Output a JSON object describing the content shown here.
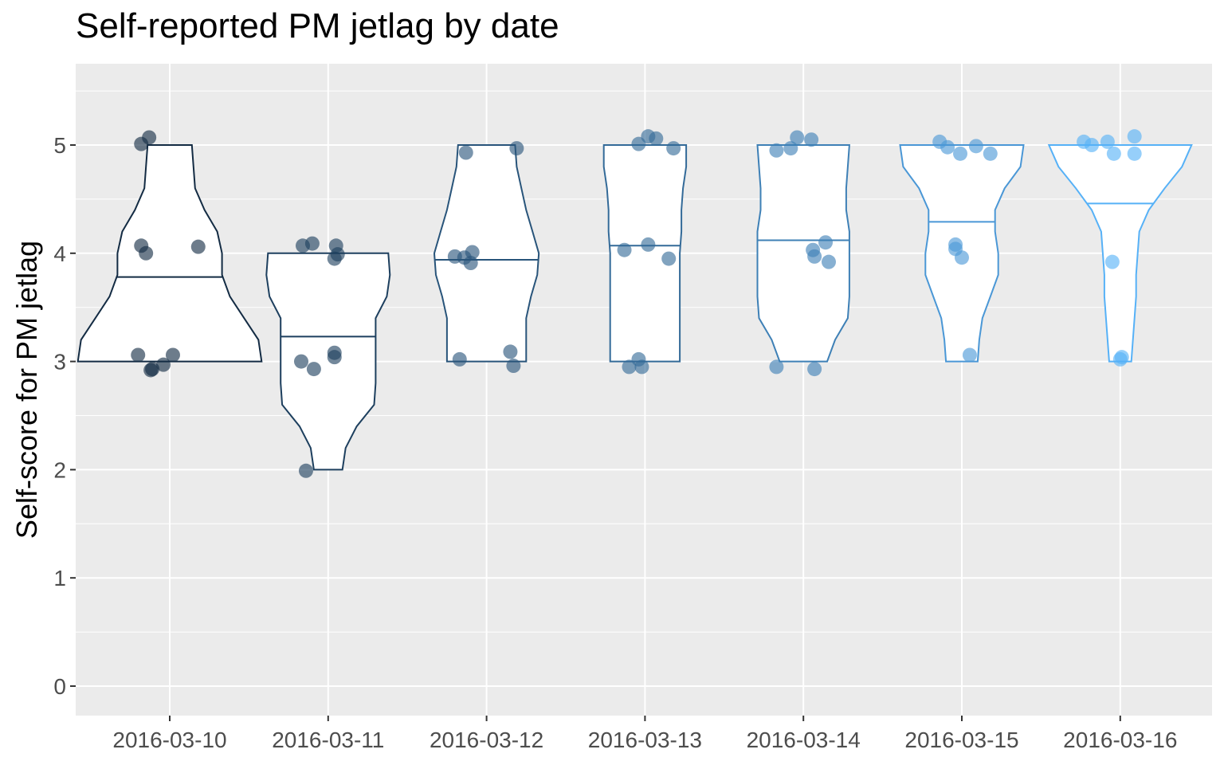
{
  "chart_data": {
    "type": "violin",
    "title": "Self-reported PM jetlag by date",
    "xlabel": "",
    "ylabel": "Self-score for PM jetlag",
    "ylim": [
      -0.25,
      5.75
    ],
    "yticks": [
      0,
      1,
      2,
      3,
      4,
      5
    ],
    "grid": true,
    "legend": "none",
    "categories": [
      "2016-03-10",
      "2016-03-11",
      "2016-03-12",
      "2016-03-13",
      "2016-03-14",
      "2016-03-15",
      "2016-03-16"
    ],
    "colors": [
      "#132B43",
      "#1D3F5E",
      "#28547A",
      "#336A98",
      "#3E80B6",
      "#4A97D6",
      "#56B1F7"
    ],
    "panel_background": "#EBEBEB",
    "groups": [
      {
        "category": "2016-03-10",
        "mean": 3.78,
        "range": [
          3,
          5
        ],
        "profile": [
          [
            3.0,
            0.58
          ],
          [
            3.2,
            0.56
          ],
          [
            3.4,
            0.47
          ],
          [
            3.6,
            0.38
          ],
          [
            3.8,
            0.33
          ],
          [
            4.0,
            0.33
          ],
          [
            4.2,
            0.3
          ],
          [
            4.4,
            0.22
          ],
          [
            4.6,
            0.16
          ],
          [
            4.8,
            0.15
          ],
          [
            5.0,
            0.14
          ]
        ],
        "points": [
          [
            -0.18,
            5.01
          ],
          [
            -0.13,
            5.07
          ],
          [
            -0.18,
            4.07
          ],
          [
            -0.15,
            4.0
          ],
          [
            0.18,
            4.06
          ],
          [
            -0.2,
            3.06
          ],
          [
            0.02,
            3.06
          ],
          [
            -0.04,
            2.97
          ],
          [
            -0.11,
            2.93
          ],
          [
            -0.12,
            2.92
          ]
        ]
      },
      {
        "category": "2016-03-11",
        "mean": 3.23,
        "range": [
          2,
          4
        ],
        "profile": [
          [
            2.0,
            0.09
          ],
          [
            2.2,
            0.11
          ],
          [
            2.4,
            0.18
          ],
          [
            2.6,
            0.29
          ],
          [
            2.8,
            0.3
          ],
          [
            3.0,
            0.3
          ],
          [
            3.2,
            0.3
          ],
          [
            3.4,
            0.3
          ],
          [
            3.6,
            0.37
          ],
          [
            3.8,
            0.39
          ],
          [
            4.0,
            0.38
          ]
        ],
        "points": [
          [
            -0.16,
            4.07
          ],
          [
            -0.1,
            4.09
          ],
          [
            0.05,
            4.07
          ],
          [
            0.06,
            3.99
          ],
          [
            0.04,
            3.95
          ],
          [
            -0.17,
            3.0
          ],
          [
            -0.09,
            2.93
          ],
          [
            0.04,
            3.08
          ],
          [
            0.04,
            3.04
          ],
          [
            -0.14,
            1.99
          ]
        ]
      },
      {
        "category": "2016-03-12",
        "mean": 3.94,
        "range": [
          3,
          5
        ],
        "profile": [
          [
            3.0,
            0.25
          ],
          [
            3.2,
            0.25
          ],
          [
            3.4,
            0.25
          ],
          [
            3.6,
            0.28
          ],
          [
            3.8,
            0.32
          ],
          [
            4.0,
            0.33
          ],
          [
            4.2,
            0.29
          ],
          [
            4.4,
            0.25
          ],
          [
            4.6,
            0.22
          ],
          [
            4.8,
            0.19
          ],
          [
            5.0,
            0.18
          ]
        ],
        "points": [
          [
            -0.13,
            4.93
          ],
          [
            0.19,
            4.97
          ],
          [
            -0.2,
            3.97
          ],
          [
            -0.14,
            3.96
          ],
          [
            -0.09,
            4.01
          ],
          [
            -0.1,
            3.91
          ],
          [
            -0.17,
            3.02
          ],
          [
            0.15,
            3.09
          ],
          [
            0.17,
            2.96
          ]
        ]
      },
      {
        "category": "2016-03-13",
        "mean": 4.07,
        "range": [
          3,
          5
        ],
        "profile": [
          [
            3.0,
            0.22
          ],
          [
            3.2,
            0.22
          ],
          [
            3.4,
            0.22
          ],
          [
            3.6,
            0.22
          ],
          [
            3.8,
            0.22
          ],
          [
            4.0,
            0.22
          ],
          [
            4.2,
            0.23
          ],
          [
            4.4,
            0.23
          ],
          [
            4.6,
            0.24
          ],
          [
            4.8,
            0.26
          ],
          [
            5.0,
            0.26
          ]
        ],
        "points": [
          [
            -0.04,
            5.01
          ],
          [
            0.02,
            5.08
          ],
          [
            0.07,
            5.06
          ],
          [
            0.18,
            4.97
          ],
          [
            -0.13,
            4.03
          ],
          [
            0.02,
            4.08
          ],
          [
            0.15,
            3.95
          ],
          [
            -0.04,
            3.02
          ],
          [
            -0.1,
            2.95
          ],
          [
            -0.02,
            2.95
          ]
        ]
      },
      {
        "category": "2016-03-14",
        "mean": 4.12,
        "range": [
          3,
          5
        ],
        "profile": [
          [
            3.0,
            0.15
          ],
          [
            3.2,
            0.2
          ],
          [
            3.4,
            0.28
          ],
          [
            3.6,
            0.29
          ],
          [
            3.8,
            0.29
          ],
          [
            4.0,
            0.29
          ],
          [
            4.2,
            0.29
          ],
          [
            4.4,
            0.27
          ],
          [
            4.6,
            0.27
          ],
          [
            4.8,
            0.28
          ],
          [
            5.0,
            0.29
          ]
        ],
        "points": [
          [
            -0.17,
            4.95
          ],
          [
            -0.08,
            4.97
          ],
          [
            -0.04,
            5.07
          ],
          [
            0.05,
            5.05
          ],
          [
            0.06,
            4.03
          ],
          [
            0.07,
            3.97
          ],
          [
            0.14,
            4.1
          ],
          [
            0.16,
            3.92
          ],
          [
            -0.17,
            2.95
          ],
          [
            0.07,
            2.93
          ]
        ]
      },
      {
        "category": "2016-03-15",
        "mean": 4.29,
        "range": [
          3,
          5
        ],
        "profile": [
          [
            3.0,
            0.1
          ],
          [
            3.2,
            0.11
          ],
          [
            3.4,
            0.13
          ],
          [
            3.6,
            0.18
          ],
          [
            3.8,
            0.23
          ],
          [
            4.0,
            0.23
          ],
          [
            4.2,
            0.21
          ],
          [
            4.4,
            0.21
          ],
          [
            4.6,
            0.27
          ],
          [
            4.8,
            0.37
          ],
          [
            5.0,
            0.39
          ]
        ],
        "points": [
          [
            -0.14,
            5.03
          ],
          [
            -0.09,
            4.98
          ],
          [
            -0.01,
            4.92
          ],
          [
            0.09,
            4.99
          ],
          [
            0.18,
            4.92
          ],
          [
            -0.04,
            4.08
          ],
          [
            -0.04,
            4.04
          ],
          [
            0.0,
            3.96
          ],
          [
            0.05,
            3.06
          ]
        ]
      },
      {
        "category": "2016-03-16",
        "mean": 4.46,
        "range": [
          3,
          5
        ],
        "profile": [
          [
            3.0,
            0.07
          ],
          [
            3.2,
            0.08
          ],
          [
            3.4,
            0.09
          ],
          [
            3.6,
            0.1
          ],
          [
            3.8,
            0.1
          ],
          [
            4.0,
            0.11
          ],
          [
            4.2,
            0.12
          ],
          [
            4.4,
            0.18
          ],
          [
            4.6,
            0.28
          ],
          [
            4.8,
            0.39
          ],
          [
            5.0,
            0.45
          ]
        ],
        "points": [
          [
            -0.23,
            5.03
          ],
          [
            -0.18,
            5.0
          ],
          [
            -0.08,
            5.03
          ],
          [
            -0.04,
            4.92
          ],
          [
            0.09,
            5.08
          ],
          [
            0.09,
            4.92
          ],
          [
            -0.05,
            3.92
          ],
          [
            0.01,
            3.04
          ],
          [
            0.0,
            3.02
          ]
        ]
      }
    ]
  }
}
